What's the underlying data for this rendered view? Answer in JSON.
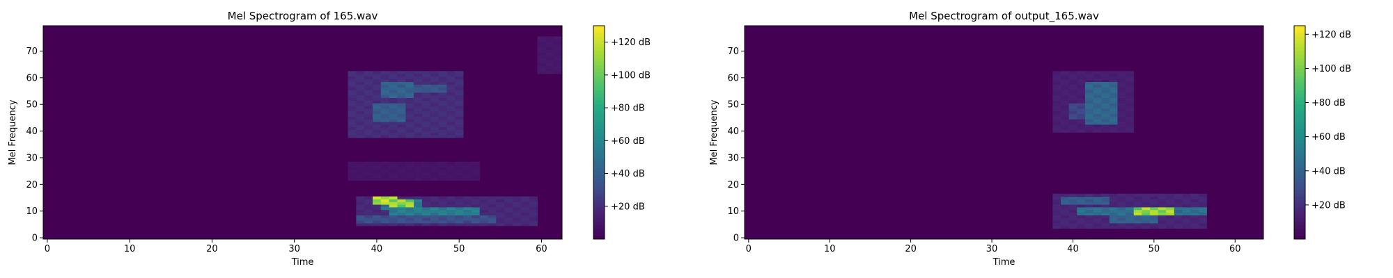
{
  "chart_data": [
    {
      "type": "heatmap",
      "title": "Mel Spectrogram of 165.wav",
      "xlabel": "Time",
      "ylabel": "Mel Frequency",
      "xlim": [
        -0.5,
        62.5
      ],
      "ylim": [
        -0.5,
        79.5
      ],
      "x_ticks": [
        0,
        10,
        20,
        30,
        40,
        50,
        60
      ],
      "y_ticks": [
        0,
        10,
        20,
        30,
        40,
        50,
        60,
        70
      ],
      "colorbar": {
        "min": 0,
        "max": 130,
        "ticks": [
          20,
          40,
          60,
          80,
          100,
          120
        ],
        "tick_labels": [
          "+20 dB",
          "+40 dB",
          "+60 dB",
          "+80 dB",
          "+100 dB",
          "+120 dB"
        ],
        "colormap": "viridis"
      },
      "background_level": 0,
      "blobs": [
        {
          "t_range": [
            37,
            50
          ],
          "mel_range": [
            38,
            62
          ],
          "level": 22
        },
        {
          "t_range": [
            40,
            43
          ],
          "mel_range": [
            44,
            50
          ],
          "level": 42
        },
        {
          "t_range": [
            41,
            44
          ],
          "mel_range": [
            53,
            58
          ],
          "level": 45
        },
        {
          "t_range": [
            44,
            48
          ],
          "mel_range": [
            55,
            57
          ],
          "level": 38
        },
        {
          "t_range": [
            37,
            52
          ],
          "mel_range": [
            22,
            28
          ],
          "level": 10
        },
        {
          "t_range": [
            38,
            59
          ],
          "mel_range": [
            5,
            15
          ],
          "level": 20
        },
        {
          "t_range": [
            42,
            52
          ],
          "mel_range": [
            9,
            11
          ],
          "level": 60
        },
        {
          "t_range": [
            38,
            54
          ],
          "mel_range": [
            6,
            8
          ],
          "level": 35
        },
        {
          "t_range": [
            41,
            45
          ],
          "mel_range": [
            11,
            14
          ],
          "level": 58
        },
        {
          "t_range": [
            40,
            42
          ],
          "mel_range": [
            13,
            15
          ],
          "level": 125
        },
        {
          "t_range": [
            42,
            44
          ],
          "mel_range": [
            12,
            14
          ],
          "level": 118
        },
        {
          "t_range": [
            60,
            62
          ],
          "mel_range": [
            62,
            75
          ],
          "level": 12
        }
      ]
    },
    {
      "type": "heatmap",
      "title": "Mel Spectrogram of output_165.wav",
      "xlabel": "Time",
      "ylabel": "Mel Frequency",
      "xlim": [
        -0.5,
        63.5
      ],
      "ylim": [
        -0.5,
        79.5
      ],
      "x_ticks": [
        0,
        10,
        20,
        30,
        40,
        50,
        60
      ],
      "y_ticks": [
        0,
        10,
        20,
        30,
        40,
        50,
        60,
        70
      ],
      "colorbar": {
        "min": 0,
        "max": 125,
        "ticks": [
          20,
          40,
          60,
          80,
          100,
          120
        ],
        "tick_labels": [
          "+20 dB",
          "+40 dB",
          "+60 dB",
          "+80 dB",
          "+100 dB",
          "+120 dB"
        ],
        "colormap": "viridis"
      },
      "background_level": 0,
      "blobs": [
        {
          "t_range": [
            38,
            47
          ],
          "mel_range": [
            40,
            62
          ],
          "level": 15
        },
        {
          "t_range": [
            42,
            45
          ],
          "mel_range": [
            43,
            58
          ],
          "level": 45
        },
        {
          "t_range": [
            40,
            42
          ],
          "mel_range": [
            45,
            50
          ],
          "level": 30
        },
        {
          "t_range": [
            38,
            56
          ],
          "mel_range": [
            4,
            16
          ],
          "level": 18
        },
        {
          "t_range": [
            39,
            44
          ],
          "mel_range": [
            13,
            15
          ],
          "level": 40
        },
        {
          "t_range": [
            41,
            56
          ],
          "mel_range": [
            9,
            11
          ],
          "level": 50
        },
        {
          "t_range": [
            45,
            50
          ],
          "mel_range": [
            6,
            8
          ],
          "level": 42
        },
        {
          "t_range": [
            48,
            52
          ],
          "mel_range": [
            9,
            11
          ],
          "level": 115
        }
      ]
    }
  ]
}
